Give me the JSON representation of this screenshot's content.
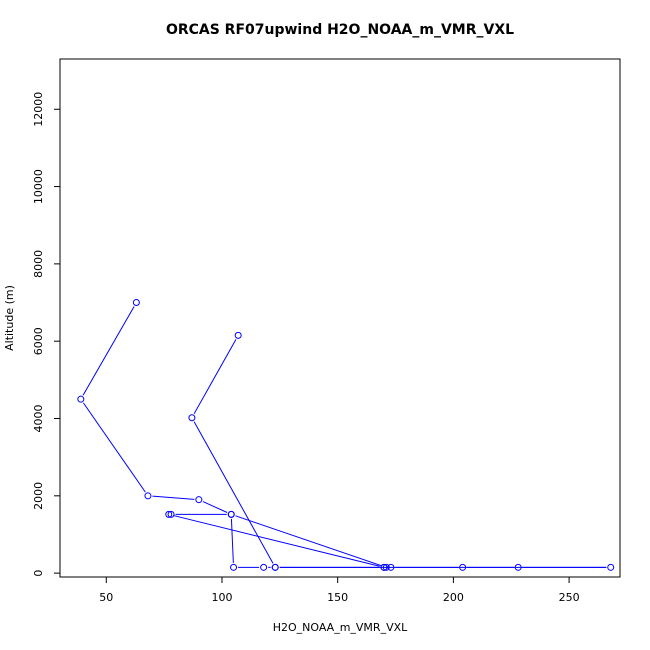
{
  "chart_data": {
    "type": "line",
    "title": "ORCAS RF07upwind H2O_NOAA_m_VMR_VXL",
    "xlabel": "H2O_NOAA_m_VMR_VXL",
    "ylabel": "Altitude (m)",
    "xlim": [
      30,
      272
    ],
    "ylim": [
      -100,
      13300
    ],
    "xticks": [
      50,
      100,
      150,
      200,
      250
    ],
    "yticks": [
      0,
      2000,
      4000,
      6000,
      8000,
      10000,
      12000
    ],
    "markers": "open-circle",
    "color": "#0000ff",
    "grid": false,
    "series": [
      {
        "x": [
          63,
          39,
          68,
          90,
          104,
          171,
          173,
          268,
          228,
          204,
          123,
          118,
          105,
          104,
          78,
          77,
          170,
          170,
          123,
          87,
          107
        ],
        "y": [
          7000,
          4500,
          2000,
          1900,
          1520,
          150,
          150,
          150,
          150,
          150,
          150,
          150,
          150,
          1520,
          1520,
          1520,
          150,
          150,
          150,
          4020,
          6150
        ]
      }
    ]
  }
}
